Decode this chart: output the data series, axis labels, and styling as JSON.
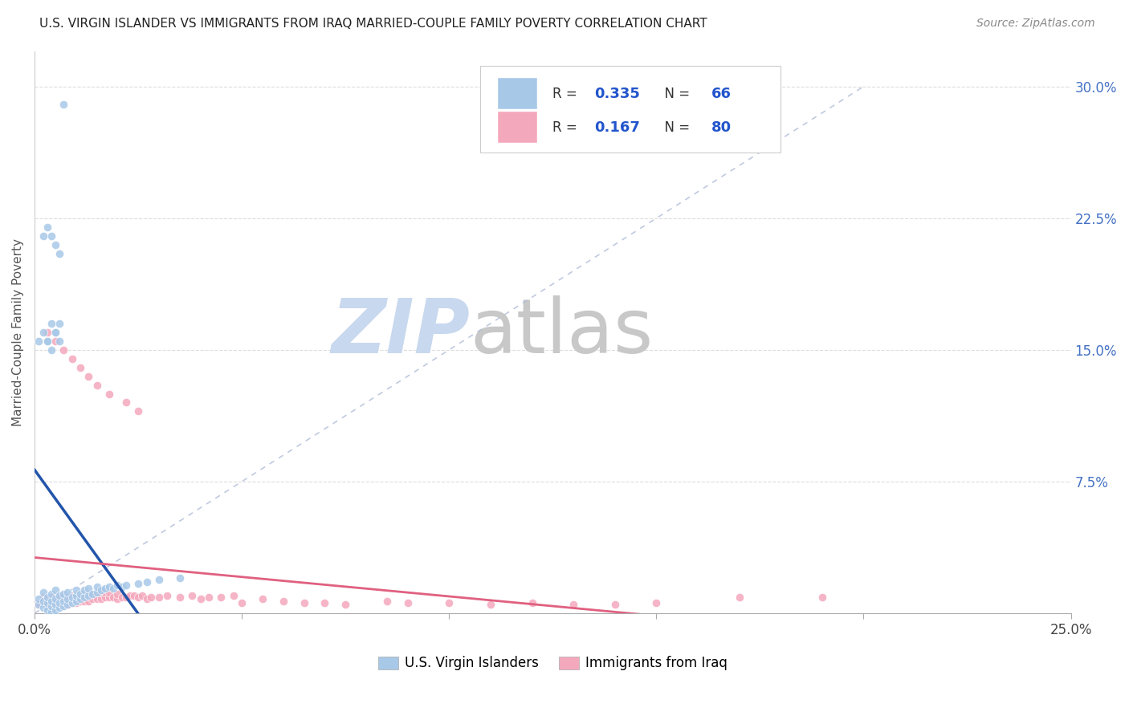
{
  "title": "U.S. VIRGIN ISLANDER VS IMMIGRANTS FROM IRAQ MARRIED-COUPLE FAMILY POVERTY CORRELATION CHART",
  "source": "Source: ZipAtlas.com",
  "ylabel": "Married-Couple Family Poverty",
  "ytick_labels": [
    "7.5%",
    "15.0%",
    "22.5%",
    "30.0%"
  ],
  "ytick_values": [
    0.075,
    0.15,
    0.225,
    0.3
  ],
  "xlim": [
    0.0,
    0.25
  ],
  "ylim": [
    0.0,
    0.32
  ],
  "blue_R": 0.335,
  "blue_N": 66,
  "pink_R": 0.167,
  "pink_N": 80,
  "blue_color": "#a8c8e8",
  "pink_color": "#f4a8bc",
  "blue_line_color": "#2255aa",
  "pink_line_color": "#e06080",
  "ref_line_color": "#b0bcd8",
  "watermark_zip_color": "#c8d8ee",
  "watermark_atlas_color": "#c8c8c8",
  "legend_blue_label": "U.S. Virgin Islanders",
  "legend_pink_label": "Immigrants from Iraq",
  "blue_scatter_x": [
    0.001,
    0.001,
    0.002,
    0.002,
    0.002,
    0.003,
    0.003,
    0.003,
    0.004,
    0.004,
    0.004,
    0.004,
    0.005,
    0.005,
    0.005,
    0.005,
    0.006,
    0.006,
    0.006,
    0.007,
    0.007,
    0.007,
    0.008,
    0.008,
    0.008,
    0.009,
    0.009,
    0.01,
    0.01,
    0.01,
    0.011,
    0.011,
    0.012,
    0.012,
    0.013,
    0.013,
    0.014,
    0.015,
    0.015,
    0.016,
    0.017,
    0.018,
    0.019,
    0.02,
    0.021,
    0.022,
    0.025,
    0.027,
    0.03,
    0.035,
    0.001,
    0.002,
    0.003,
    0.004,
    0.005,
    0.006,
    0.003,
    0.004,
    0.005,
    0.006,
    0.002,
    0.003,
    0.004,
    0.005,
    0.006,
    0.007
  ],
  "blue_scatter_y": [
    0.005,
    0.008,
    0.003,
    0.007,
    0.012,
    0.002,
    0.006,
    0.009,
    0.001,
    0.004,
    0.007,
    0.011,
    0.002,
    0.005,
    0.008,
    0.013,
    0.003,
    0.006,
    0.01,
    0.004,
    0.007,
    0.011,
    0.005,
    0.008,
    0.012,
    0.006,
    0.009,
    0.007,
    0.01,
    0.013,
    0.008,
    0.011,
    0.009,
    0.013,
    0.01,
    0.014,
    0.011,
    0.012,
    0.015,
    0.013,
    0.014,
    0.015,
    0.014,
    0.016,
    0.015,
    0.016,
    0.017,
    0.018,
    0.019,
    0.02,
    0.155,
    0.16,
    0.155,
    0.165,
    0.16,
    0.165,
    0.155,
    0.15,
    0.16,
    0.155,
    0.215,
    0.22,
    0.215,
    0.21,
    0.205,
    0.29
  ],
  "pink_scatter_x": [
    0.001,
    0.002,
    0.002,
    0.003,
    0.003,
    0.004,
    0.004,
    0.005,
    0.005,
    0.006,
    0.006,
    0.007,
    0.007,
    0.008,
    0.008,
    0.009,
    0.009,
    0.01,
    0.01,
    0.011,
    0.011,
    0.012,
    0.012,
    0.013,
    0.013,
    0.014,
    0.014,
    0.015,
    0.015,
    0.016,
    0.016,
    0.017,
    0.017,
    0.018,
    0.018,
    0.019,
    0.02,
    0.02,
    0.021,
    0.022,
    0.023,
    0.024,
    0.025,
    0.026,
    0.027,
    0.028,
    0.03,
    0.032,
    0.035,
    0.038,
    0.04,
    0.042,
    0.045,
    0.048,
    0.05,
    0.055,
    0.06,
    0.065,
    0.07,
    0.075,
    0.085,
    0.09,
    0.1,
    0.11,
    0.12,
    0.13,
    0.14,
    0.15,
    0.17,
    0.19,
    0.003,
    0.005,
    0.007,
    0.009,
    0.011,
    0.013,
    0.015,
    0.018,
    0.022,
    0.025
  ],
  "pink_scatter_y": [
    0.005,
    0.006,
    0.009,
    0.004,
    0.008,
    0.005,
    0.009,
    0.004,
    0.008,
    0.005,
    0.009,
    0.006,
    0.01,
    0.005,
    0.009,
    0.006,
    0.01,
    0.006,
    0.009,
    0.007,
    0.01,
    0.007,
    0.011,
    0.007,
    0.011,
    0.008,
    0.011,
    0.008,
    0.012,
    0.008,
    0.012,
    0.009,
    0.012,
    0.009,
    0.012,
    0.009,
    0.008,
    0.011,
    0.009,
    0.009,
    0.01,
    0.01,
    0.009,
    0.01,
    0.008,
    0.009,
    0.009,
    0.01,
    0.009,
    0.01,
    0.008,
    0.009,
    0.009,
    0.01,
    0.006,
    0.008,
    0.007,
    0.006,
    0.006,
    0.005,
    0.007,
    0.006,
    0.006,
    0.005,
    0.006,
    0.005,
    0.005,
    0.006,
    0.009,
    0.009,
    0.16,
    0.155,
    0.15,
    0.145,
    0.14,
    0.135,
    0.13,
    0.125,
    0.12,
    0.115
  ]
}
